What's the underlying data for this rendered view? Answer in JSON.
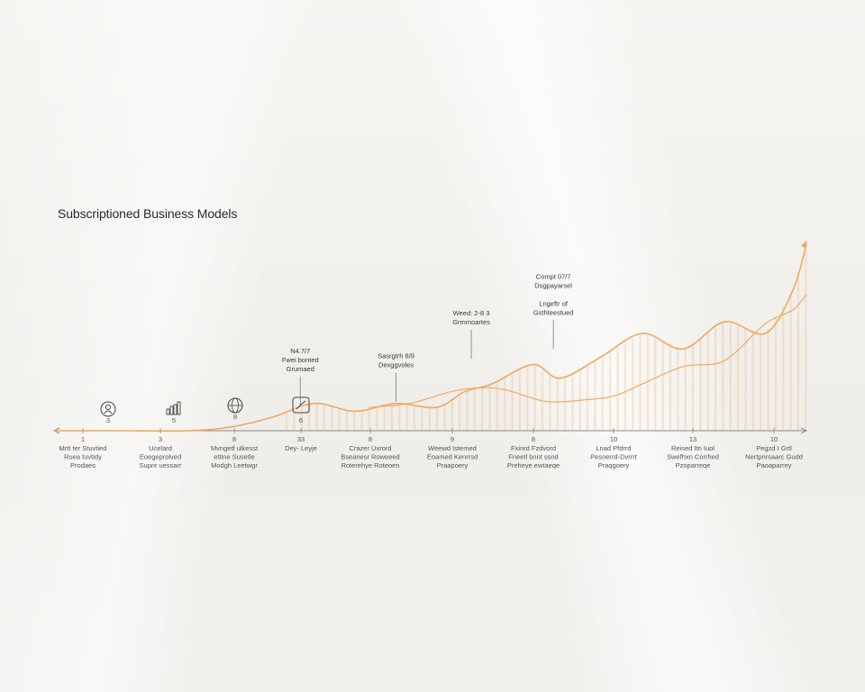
{
  "chart_data": {
    "type": "area",
    "title": "Subscriptioned Business Models",
    "xlabel": "",
    "ylabel": "",
    "x_range": [
      0,
      11
    ],
    "y_range": [
      0,
      1
    ],
    "grid": false,
    "accent_color": "#f2b27a",
    "curve_color": "#f0a862",
    "ticks": [
      {
        "num": "1",
        "label": [
          "Mrtt ter Stuvtied",
          "Ruea tuvtidy",
          "Prodaes"
        ]
      },
      {
        "num": "3",
        "label": [
          "Ucelard",
          "Eoegeprolved",
          "Supnr uessarr"
        ]
      },
      {
        "num": "8",
        "label": [
          "Mvngetf ulkesst",
          "ettine Susetle",
          "Modgh Leetwgr"
        ]
      },
      {
        "num": "33",
        "label": [
          "Dey- Leyje"
        ]
      },
      {
        "num": "8",
        "label": [
          "Crazer Uxrord",
          "Bseanesr Roweeed",
          "Roterehye Roteoen"
        ]
      },
      {
        "num": "9",
        "label": [
          "Weewd Istemed",
          "Eoamed Kenrrsd",
          "Praapoery"
        ]
      },
      {
        "num": "8",
        "label": [
          "Fxinrd Fzdvord",
          "Fneetl bnnt ssnd",
          "Preheye ewtaeqe"
        ]
      },
      {
        "num": "10",
        "label": [
          "Lnad Pfdrrd",
          "Pesnerrd-Dvrrrt",
          "Praqgoery"
        ]
      },
      {
        "num": "13",
        "label": [
          "Reised Itn Iuol",
          "Swefhxn Corrhed",
          "Pzoparreqe"
        ]
      },
      {
        "num": "10",
        "label": [
          "Pegzd I Grtl",
          "Nertpnrsaarc Gudd",
          "Paoaparrey"
        ]
      }
    ],
    "icons": [
      {
        "name": "user-circle-icon",
        "num": "3"
      },
      {
        "name": "bar-chart-icon",
        "num": "5"
      },
      {
        "name": "globe-icon",
        "num": "8"
      },
      {
        "name": "growth-box-icon",
        "num": "6"
      }
    ],
    "series": [
      {
        "values_x": [
          0,
          1,
          2,
          2.6,
          3.2,
          3.8,
          4.4,
          5,
          5.6,
          6,
          6.4,
          7,
          7.4,
          8,
          8.6,
          9.2,
          9.8,
          10.4,
          10.8,
          11
        ],
        "values_y": [
          0.0,
          0.0,
          0.0,
          0.02,
          0.07,
          0.14,
          0.1,
          0.14,
          0.12,
          0.2,
          0.24,
          0.34,
          0.27,
          0.38,
          0.5,
          0.42,
          0.56,
          0.5,
          0.72,
          0.96
        ]
      },
      {
        "values_x": [
          4.6,
          5.2,
          5.8,
          6.2,
          6.6,
          7.2,
          7.8,
          8.2,
          8.6,
          9.2,
          9.8,
          10.4,
          10.8,
          11
        ],
        "values_y": [
          0.12,
          0.14,
          0.2,
          0.22,
          0.21,
          0.15,
          0.16,
          0.18,
          0.24,
          0.33,
          0.36,
          0.55,
          0.62,
          0.7
        ]
      }
    ],
    "annotations": [
      {
        "x": 3.6,
        "y": 0.13,
        "lines": [
          "N4.7/7",
          "Fwei bonted",
          "Grumaed"
        ]
      },
      {
        "x": 5.0,
        "y": 0.15,
        "lines": [
          "Sasrgtrh 8/9",
          "Dexggvoles"
        ]
      },
      {
        "x": 6.1,
        "y": 0.37,
        "lines": [
          "Weed: 2-8 3",
          "Grmmoartes"
        ]
      },
      {
        "x": 7.3,
        "y": 0.42,
        "lines": [
          "Compt 07/7",
          "Dsgpayarsel",
          "",
          "Lngeftr of",
          "Gsthteestued"
        ]
      }
    ]
  }
}
